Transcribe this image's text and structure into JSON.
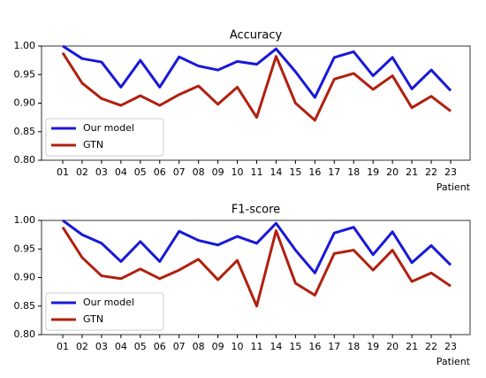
{
  "chart_data": [
    {
      "type": "line",
      "title": "Accuracy",
      "x_label": "Patient",
      "categories": [
        "01",
        "02",
        "03",
        "04",
        "05",
        "06",
        "07",
        "08",
        "09",
        "10",
        "11",
        "14",
        "15",
        "16",
        "17",
        "18",
        "19",
        "20",
        "21",
        "22",
        "23"
      ],
      "series": [
        {
          "name": "Our model",
          "color": "#1818d8",
          "values": [
            1.0,
            0.978,
            0.972,
            0.928,
            0.975,
            0.928,
            0.981,
            0.965,
            0.958,
            0.973,
            0.968,
            0.995,
            0.955,
            0.91,
            0.98,
            0.99,
            0.948,
            0.98,
            0.925,
            0.958,
            0.922
          ]
        },
        {
          "name": "GTN",
          "color": "#b0200e",
          "values": [
            0.988,
            0.935,
            0.908,
            0.896,
            0.913,
            0.896,
            0.915,
            0.93,
            0.898,
            0.928,
            0.875,
            0.982,
            0.9,
            0.87,
            0.942,
            0.952,
            0.924,
            0.948,
            0.892,
            0.912,
            0.886
          ]
        }
      ],
      "ylim": [
        0.8,
        1.0
      ],
      "yticks": [
        {
          "value": 0.8,
          "label": "0.80"
        },
        0.85,
        {
          "value": 0.9,
          "label": "0.90"
        },
        0.95,
        {
          "value": 1.0,
          "label": "1.00"
        }
      ],
      "legend": "lower left"
    },
    {
      "type": "line",
      "title": "F1-score",
      "x_label": "Patient",
      "categories": [
        "01",
        "02",
        "03",
        "04",
        "05",
        "06",
        "07",
        "08",
        "09",
        "10",
        "11",
        "14",
        "15",
        "16",
        "17",
        "18",
        "19",
        "20",
        "21",
        "22",
        "23"
      ],
      "series": [
        {
          "name": "Our model",
          "color": "#1818d8",
          "values": [
            1.0,
            0.975,
            0.96,
            0.928,
            0.963,
            0.928,
            0.981,
            0.965,
            0.957,
            0.972,
            0.96,
            0.995,
            0.948,
            0.908,
            0.978,
            0.988,
            0.94,
            0.98,
            0.926,
            0.956,
            0.922
          ]
        },
        {
          "name": "GTN",
          "color": "#b0200e",
          "values": [
            0.988,
            0.935,
            0.903,
            0.898,
            0.915,
            0.898,
            0.913,
            0.932,
            0.896,
            0.93,
            0.85,
            0.982,
            0.89,
            0.869,
            0.942,
            0.948,
            0.913,
            0.948,
            0.893,
            0.908,
            0.885
          ]
        }
      ],
      "ylim": [
        0.8,
        1.0
      ],
      "yticks": [
        {
          "value": 0.8,
          "label": "0.80"
        },
        0.85,
        {
          "value": 0.9,
          "label": "0.90"
        },
        0.95,
        {
          "value": 1.0,
          "label": "1.00"
        }
      ],
      "legend": "lower left"
    }
  ]
}
